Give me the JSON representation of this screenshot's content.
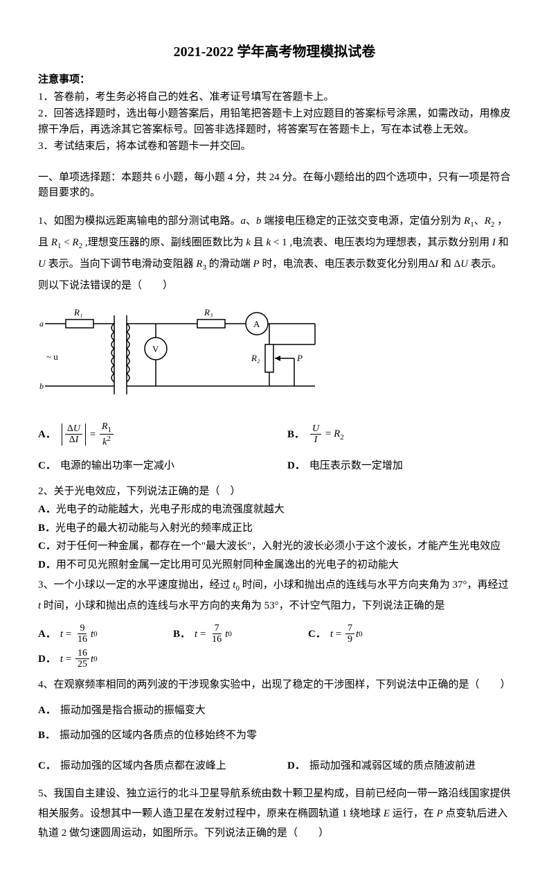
{
  "title": "2021-2022 学年高考物理模拟试卷",
  "notice_heading": "注意事项：",
  "notices": [
    "1．答卷前，考生务必将自己的姓名、准考证号填写在答题卡上。",
    "2．回答选择题时，选出每小题答案后，用铅笔把答题卡上对应题目的答案标号涂黑，如需改动，用橡皮擦干净后，再选涂其它答案标号。回答非选择题时，将答案写在答题卡上，写在本试卷上无效。",
    "3．考试结束后，将本试卷和答题卡一并交回。"
  ],
  "section1_title": "一、单项选择题：本题共 6 小题，每小题 4 分，共 24 分。在每小题给出的四个选项中，只有一项是符合题目要求的。",
  "q1": {
    "line_html": "1、如图为模拟远距离输电的部分测试电路。<span class='it'>a</span>、<span class='it'>b</span> 端接电压稳定的正弦交变电源，定值分别为 <span class='it'>R</span><sub>1</sub>、<span class='it'>R</span><sub>2</sub> ，且 <span class='it'>R</span><sub>1</sub> &lt; <span class='it'>R</span><sub>2</sub> ,理想变压器的原、副线圈匝数比为 <span class='it'>k</span> 且 <span class='it'>k</span> &lt; 1 ,电流表、电压表均为理想表，其示数分别用 <span class='it'>I</span> 和 <span class='it'>U</span> 表示。当向下调节电滑动变阻器 <span class='it'>R</span><sub>3</sub> 的滑动端 <span class='it'>P</span> 时，电流表、电压表示数变化分别用Δ<span class='it'>I</span> 和 Δ<span class='it'>U</span> 表示。则以下说法错误的是（　　）",
    "optA_lhs_num": "Δ<span class='it'>U</span>",
    "optA_lhs_den": "Δ<span class='it'>I</span>",
    "optA_rhs_num": "<span class='it'>R</span><sub>1</sub>",
    "optA_rhs_den": "<span class='it'>k</span><sup>2</sup>",
    "optB_num": "<span class='it'>U</span>",
    "optB_den": "<span class='it'>I</span>",
    "optB_rhs": "= <span class='it'>R</span><sub>2</sub>",
    "optC": "电源的输出功率一定减小",
    "optD": "电压表示数一定增加"
  },
  "diagram": {
    "labels": {
      "R1": "R₁",
      "R3": "R₃",
      "a": "a",
      "b": "b",
      "u": "~ u",
      "V": "V",
      "A": "A",
      "R2": "R₂",
      "P": "P"
    },
    "stroke": "#000000",
    "stroke_width": 1.5
  },
  "q2": {
    "stem": "2、关于光电效应，下列说法正确的是（　）",
    "A": "光电子的动能越大，光电子形成的电流强度就越大",
    "B": "光电子的最大初动能与入射光的频率成正比",
    "C": "对于任何一种金属，都存在一个\"最大波长\"，入射光的波长必须小于这个波长，才能产生光电效应",
    "D": "用不可见光照射金属一定比用可见光照射同种金属逸出的光电子的初动能大"
  },
  "q3": {
    "stem_html": "3、一个小球以一定的水平速度抛出，经过 <span class='it'>t</span><sub>0</sub> 时间，小球和抛出点的连线与水平方向夹角为 37°，再经过 <span class='it'>t</span> 时间，小球和抛出点的连线与水平方向的夹角为 53°，不计空气阻力，下列说法正确的是",
    "A": {
      "num": "9",
      "den": "16"
    },
    "B": {
      "num": "7",
      "den": "16"
    },
    "C": {
      "num": "7",
      "den": "9"
    },
    "D": {
      "num": "16",
      "den": "25"
    }
  },
  "q4": {
    "stem": "4、在观察频率相同的两列波的干涉现象实验中，出现了稳定的干涉图样，下列说法中正确的是（　　）",
    "A": "振动加强是指合振动的振幅变大",
    "B": "振动加强的区域内各质点的位移始终不为零",
    "C": "振动加强的区域内各质点都在波峰上",
    "D": "振动加强和减弱区域的质点随波前进"
  },
  "q5": {
    "stem_html": "5、我国自主建设、独立运行的北斗卫星导航系统由数十颗卫星构成，目前已经向一带一路沿线国家提供相关服务。设想其中一颗人造卫星在发射过程中，原来在椭圆轨道 1 绕地球 <span class='it'>E</span> 运行，在 <span class='it'>P</span> 点变轨后进入轨道 2 做匀速圆周运动，如图所示。下列说法正确的是（　　）"
  },
  "labels": {
    "A": "A．",
    "B": "B．",
    "C": "C．",
    "D": "D．"
  }
}
